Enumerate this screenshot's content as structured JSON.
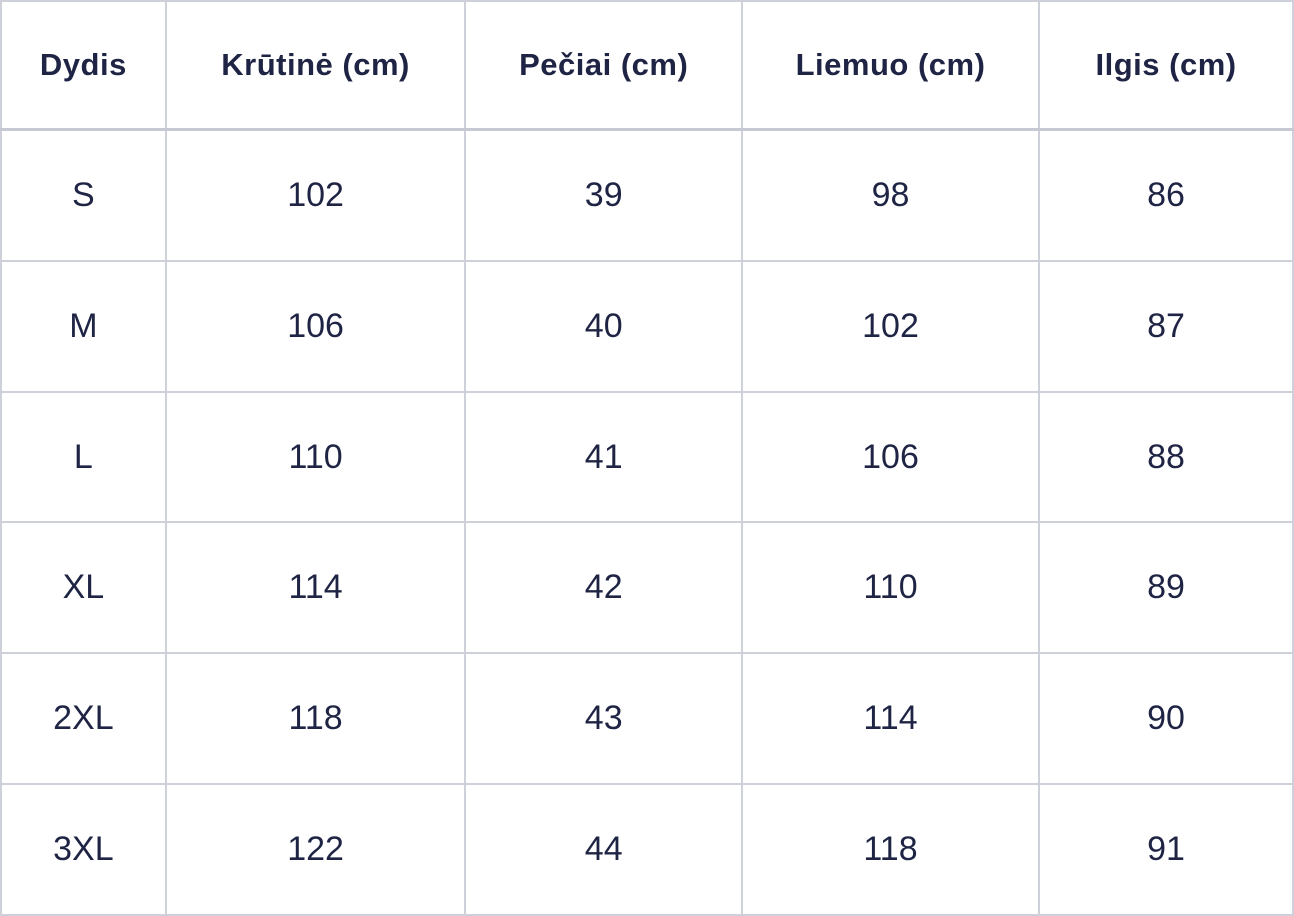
{
  "chart_data": {
    "type": "table",
    "title": "",
    "columns": [
      "Dydis",
      "Krūtinė (cm)",
      "Pečiai (cm)",
      "Liemuo (cm)",
      "Ilgis (cm)"
    ],
    "rows": [
      [
        "S",
        "102",
        "39",
        "98",
        "86"
      ],
      [
        "M",
        "106",
        "40",
        "102",
        "87"
      ],
      [
        "L",
        "110",
        "41",
        "106",
        "88"
      ],
      [
        "XL",
        "114",
        "42",
        "110",
        "89"
      ],
      [
        "2XL",
        "118",
        "43",
        "114",
        "90"
      ],
      [
        "3XL",
        "122",
        "44",
        "118",
        "91"
      ]
    ],
    "colors": {
      "text": "#1f2444",
      "border": "#cfd1da",
      "background": "#ffffff"
    }
  }
}
